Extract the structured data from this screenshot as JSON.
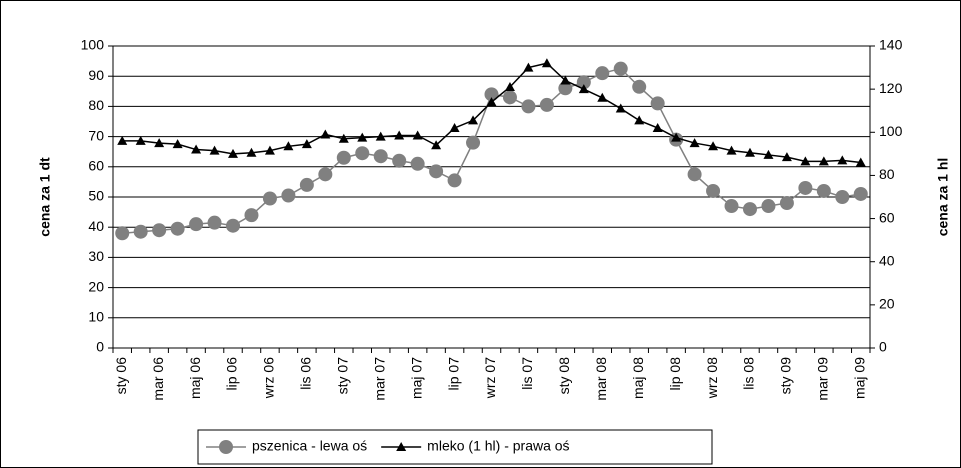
{
  "chart_data": {
    "type": "line",
    "categories": [
      "sty 06",
      null,
      "mar 06",
      null,
      "maj 06",
      null,
      "lip 06",
      null,
      "wrz 06",
      null,
      "lis 06",
      null,
      "sty 07",
      null,
      "mar 07",
      null,
      "maj 07",
      null,
      "lip 07",
      null,
      "wrz 07",
      null,
      "lis 07",
      null,
      "sty 08",
      null,
      "mar 08",
      null,
      "maj 08",
      null,
      "lip 08",
      null,
      "wrz 08",
      null,
      "lis 08",
      null,
      "sty 09",
      null,
      "mar 09",
      null,
      "maj 09"
    ],
    "y_label": "cena za 1 dt",
    "y2_label": "cena za 1 hl",
    "ylim": [
      0,
      100
    ],
    "yticks": [
      0,
      10,
      20,
      30,
      40,
      50,
      60,
      70,
      80,
      90,
      100
    ],
    "y2lim": [
      0,
      140
    ],
    "y2ticks": [
      0,
      20,
      40,
      60,
      80,
      100,
      120,
      140
    ],
    "grid": true,
    "legend": "bottom",
    "series": [
      {
        "name": "pszenica - lewa oś",
        "color": "#808080",
        "marker": "circle",
        "values": [
          38,
          38.5,
          39,
          39.5,
          41,
          41.5,
          40.5,
          44,
          49.5,
          50.5,
          54,
          57.5,
          63,
          64.5,
          63.5,
          62,
          61,
          58.5,
          55.5,
          68,
          84,
          83,
          80,
          80.5,
          86,
          88,
          91,
          92.5,
          86.5,
          81,
          69,
          57.5,
          52,
          47,
          46,
          47,
          48,
          53,
          52,
          50,
          51
        ]
      },
      {
        "name": "mleko (1 hl) - prawa oś",
        "color": "#000000",
        "marker": "triangle",
        "axis": "y2",
        "values": [
          96,
          96,
          95,
          94.5,
          92,
          91.5,
          90,
          90.5,
          91.5,
          93.5,
          94.5,
          99,
          97,
          97.5,
          98,
          98.5,
          98.5,
          94,
          102,
          105.5,
          114,
          121,
          130,
          132,
          124,
          120,
          116,
          111,
          105.5,
          102,
          97.5,
          95,
          93.5,
          91.5,
          90.5,
          89.5,
          88.5,
          86.5,
          86.5,
          87,
          86
        ]
      }
    ]
  }
}
